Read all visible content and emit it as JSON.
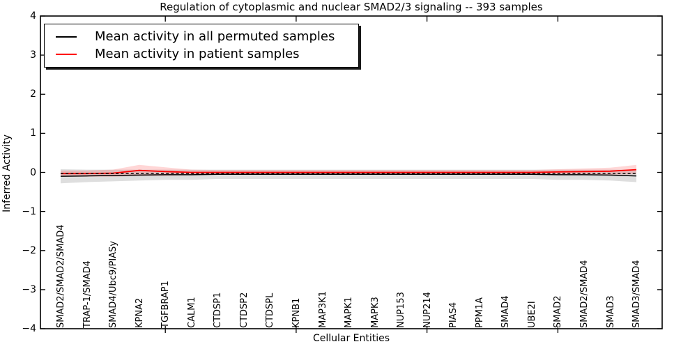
{
  "figure": {
    "title": "Regulation of cytoplasmic and nuclear SMAD2/3 signaling -- 393 samples",
    "xlabel": "Cellular Entities",
    "ylabel": "Inferred Activity"
  },
  "legend": {
    "entries": [
      {
        "label": "Mean activity in all permuted samples",
        "color": "#000000"
      },
      {
        "label": "Mean activity in patient samples",
        "color": "#ff0000"
      }
    ]
  },
  "chart_data": {
    "type": "line",
    "title": "Regulation of cytoplasmic and nuclear SMAD2/3 signaling -- 393 samples",
    "xlabel": "Cellular Entities",
    "ylabel": "Inferred Activity",
    "categories": [
      "SMAD2/SMAD2/SMAD4",
      "TRAP-1/SMAD4",
      "SMAD4/Ubc9/PIASy",
      "KPNA2",
      "TGFBRAP1",
      "CALM1",
      "CTDSP1",
      "CTDSP2",
      "CTDSPL",
      "KPNB1",
      "MAP3K1",
      "MAPK1",
      "MAPK3",
      "NUP153",
      "NUP214",
      "PIAS4",
      "PPM1A",
      "SMAD4",
      "UBE2I",
      "SMAD2",
      "SMAD2/SMAD4",
      "SMAD3",
      "SMAD3/SMAD4"
    ],
    "ylim": [
      -4,
      4
    ],
    "yticks": [
      4,
      3,
      2,
      1,
      0,
      -1,
      -2,
      -3,
      -4
    ],
    "ytick_labels": [
      "4",
      "3",
      "2",
      "1",
      "0",
      "−1",
      "−2",
      "−3",
      "−4"
    ],
    "xtick_mark_indices": [
      4,
      9,
      14,
      19
    ],
    "grid": false,
    "legend_position": "upper-left",
    "baseline": {
      "value": -0.03,
      "style": "dashed",
      "color": "#000000"
    },
    "series": [
      {
        "name": "Mean activity in all permuted samples",
        "color": "#000000",
        "line_style": "solid",
        "values": [
          -0.1,
          -0.09,
          -0.08,
          -0.07,
          -0.06,
          -0.06,
          -0.05,
          -0.05,
          -0.05,
          -0.05,
          -0.05,
          -0.05,
          -0.05,
          -0.05,
          -0.05,
          -0.05,
          -0.05,
          -0.05,
          -0.05,
          -0.06,
          -0.06,
          -0.07,
          -0.09
        ],
        "band_half_width": [
          0.18,
          0.16,
          0.15,
          0.14,
          0.13,
          0.13,
          0.12,
          0.12,
          0.12,
          0.12,
          0.12,
          0.12,
          0.12,
          0.12,
          0.12,
          0.12,
          0.12,
          0.12,
          0.12,
          0.13,
          0.13,
          0.14,
          0.16
        ],
        "band_color": "rgba(0,0,0,0.13)"
      },
      {
        "name": "Mean activity in patient samples",
        "color": "#ff0000",
        "line_style": "solid",
        "values": [
          -0.03,
          -0.03,
          -0.02,
          0.05,
          0.02,
          0.0,
          0.0,
          0.0,
          0.0,
          0.0,
          0.0,
          0.0,
          0.0,
          0.0,
          0.0,
          0.0,
          0.0,
          0.0,
          0.0,
          0.01,
          0.02,
          0.03,
          0.07
        ],
        "band_half_width": [
          0.08,
          0.08,
          0.09,
          0.14,
          0.11,
          0.07,
          0.06,
          0.06,
          0.06,
          0.06,
          0.06,
          0.06,
          0.06,
          0.06,
          0.06,
          0.06,
          0.06,
          0.06,
          0.06,
          0.07,
          0.08,
          0.09,
          0.12
        ],
        "band_color": "rgba(255,0,0,0.16)"
      }
    ]
  }
}
